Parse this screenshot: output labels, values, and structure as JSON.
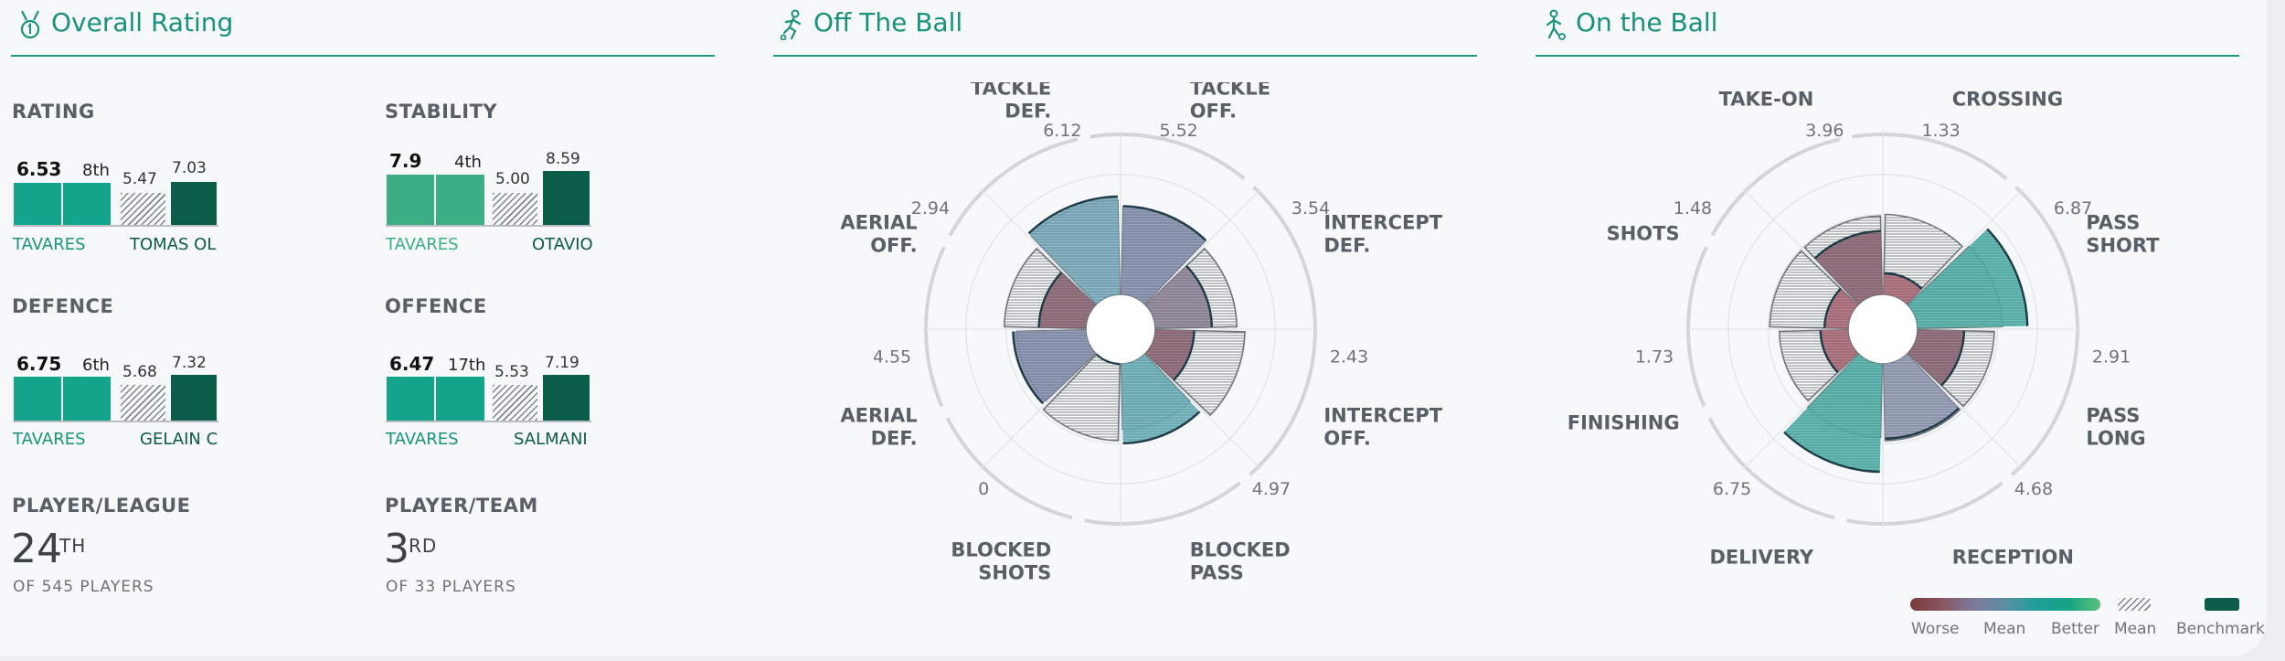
{
  "colors": {
    "accent": "#1e9a82",
    "player_bar": "#13a58c",
    "player_bar_stability": "#3cae84",
    "benchmark_bar": "#0b5d4a"
  },
  "overall": {
    "title": "Overall Rating",
    "icon": "medal-icon",
    "rating": {
      "label": "RATING",
      "value": "6.53",
      "value_num": 6.53,
      "rank": "8th",
      "mean": "5.47",
      "mean_num": 5.47,
      "bench": "7.03",
      "bench_num": 7.03,
      "player": "TAVARES",
      "bench_name": "TOMAS OL"
    },
    "stability": {
      "label": "STABILITY",
      "value": "7.9",
      "value_num": 7.9,
      "rank": "4th",
      "mean": "5.00",
      "mean_num": 5.0,
      "bench": "8.59",
      "bench_num": 8.59,
      "player": "TAVARES",
      "bench_name": "OTAVIO"
    },
    "defence": {
      "label": "DEFENCE",
      "value": "6.75",
      "value_num": 6.75,
      "rank": "6th",
      "mean": "5.68",
      "mean_num": 5.68,
      "bench": "7.32",
      "bench_num": 7.32,
      "player": "TAVARES",
      "bench_name": "GELAIN C"
    },
    "offence": {
      "label": "OFFENCE",
      "value": "6.47",
      "value_num": 6.47,
      "rank": "17th",
      "mean": "5.53",
      "mean_num": 5.53,
      "bench": "7.19",
      "bench_num": 7.19,
      "player": "TAVARES",
      "bench_name": "SALMANI"
    },
    "player_league": {
      "label": "PLAYER/LEAGUE",
      "rank": "24",
      "suffix": "TH",
      "sub": "OF 545 PLAYERS"
    },
    "player_team": {
      "label": "PLAYER/TEAM",
      "rank": "3",
      "suffix": "RD",
      "sub": "OF 33 PLAYERS"
    }
  },
  "off_ball": {
    "title": "Off The Ball",
    "icon": "running-player-icon",
    "segments": [
      {
        "line1": "TACKLE",
        "line2": "OFF.",
        "value": "5.52",
        "value_num": 5.52,
        "mean": 5.5,
        "color": "#8d97b4"
      },
      {
        "line1": "INTERCEPT",
        "line2": "DEF.",
        "value": "3.54",
        "value_num": 3.54,
        "mean": 5.1,
        "color": "#96899b"
      },
      {
        "line1": "INTERCEPT",
        "line2": "OFF.",
        "value": "2.43",
        "value_num": 2.43,
        "mean": 5.6,
        "color": "#946a78"
      },
      {
        "line1": "BLOCKED",
        "line2": "PASS",
        "value": "4.97",
        "value_num": 4.97,
        "mean": 4.1,
        "color": "#6fb8bf"
      },
      {
        "line1": "BLOCKED",
        "line2": "SHOTS",
        "value": "0",
        "value_num": 0,
        "mean": 4.8,
        "color": "#9aa2ba"
      },
      {
        "line1": "AERIAL",
        "line2": "DEF.",
        "value": "4.55",
        "value_num": 4.55,
        "mean": 4.3,
        "color": "#8d97b4"
      },
      {
        "line1": "AERIAL",
        "line2": "OFF.",
        "value": "2.94",
        "value_num": 2.94,
        "mean": 5.1,
        "color": "#946a78"
      },
      {
        "line1": "TACKLE",
        "line2": "DEF.",
        "value": "6.12",
        "value_num": 6.12,
        "mean": 5.9,
        "color": "#7fb4c3"
      }
    ]
  },
  "on_ball": {
    "title": "On the Ball",
    "icon": "dribbling-player-icon",
    "segments": [
      {
        "line1": "CROSSING",
        "line2": "",
        "value": "1.33",
        "value_num": 1.33,
        "mean": 5.0,
        "color": "#b26f79"
      },
      {
        "line1": "PASS",
        "line2": "SHORT",
        "value": "6.87",
        "value_num": 6.87,
        "mean": 5.3,
        "color": "#55b8ae"
      },
      {
        "line1": "PASS",
        "line2": "LONG",
        "value": "2.91",
        "value_num": 2.91,
        "mean": 4.8,
        "color": "#946a78"
      },
      {
        "line1": "RECEPTION",
        "line2": "",
        "value": "4.68",
        "value_num": 4.68,
        "mean": 4.8,
        "color": "#9aa2ba"
      },
      {
        "line1": "DELIVERY",
        "line2": "",
        "value": "6.75",
        "value_num": 6.75,
        "mean": 4.6,
        "color": "#55b8ae"
      },
      {
        "line1": "FINISHING",
        "line2": "",
        "value": "1.73",
        "value_num": 1.73,
        "mean": 4.3,
        "color": "#b26f79"
      },
      {
        "line1": "SHOTS",
        "line2": "",
        "value": "1.48",
        "value_num": 1.48,
        "mean": 4.9,
        "color": "#b26f79"
      },
      {
        "line1": "TAKE-ON",
        "line2": "",
        "value": "3.96",
        "value_num": 3.96,
        "mean": 4.9,
        "color": "#946a78"
      }
    ]
  },
  "legend": {
    "worse": "Worse",
    "mean": "Mean",
    "better": "Better",
    "mean_hatch": "Mean",
    "benchmark": "Benchmark",
    "gradient": [
      "#7a3b3b",
      "#8a5560",
      "#7e7a9a",
      "#5b8fa6",
      "#1f9e9b",
      "#14a384",
      "#5dc07a"
    ]
  }
}
